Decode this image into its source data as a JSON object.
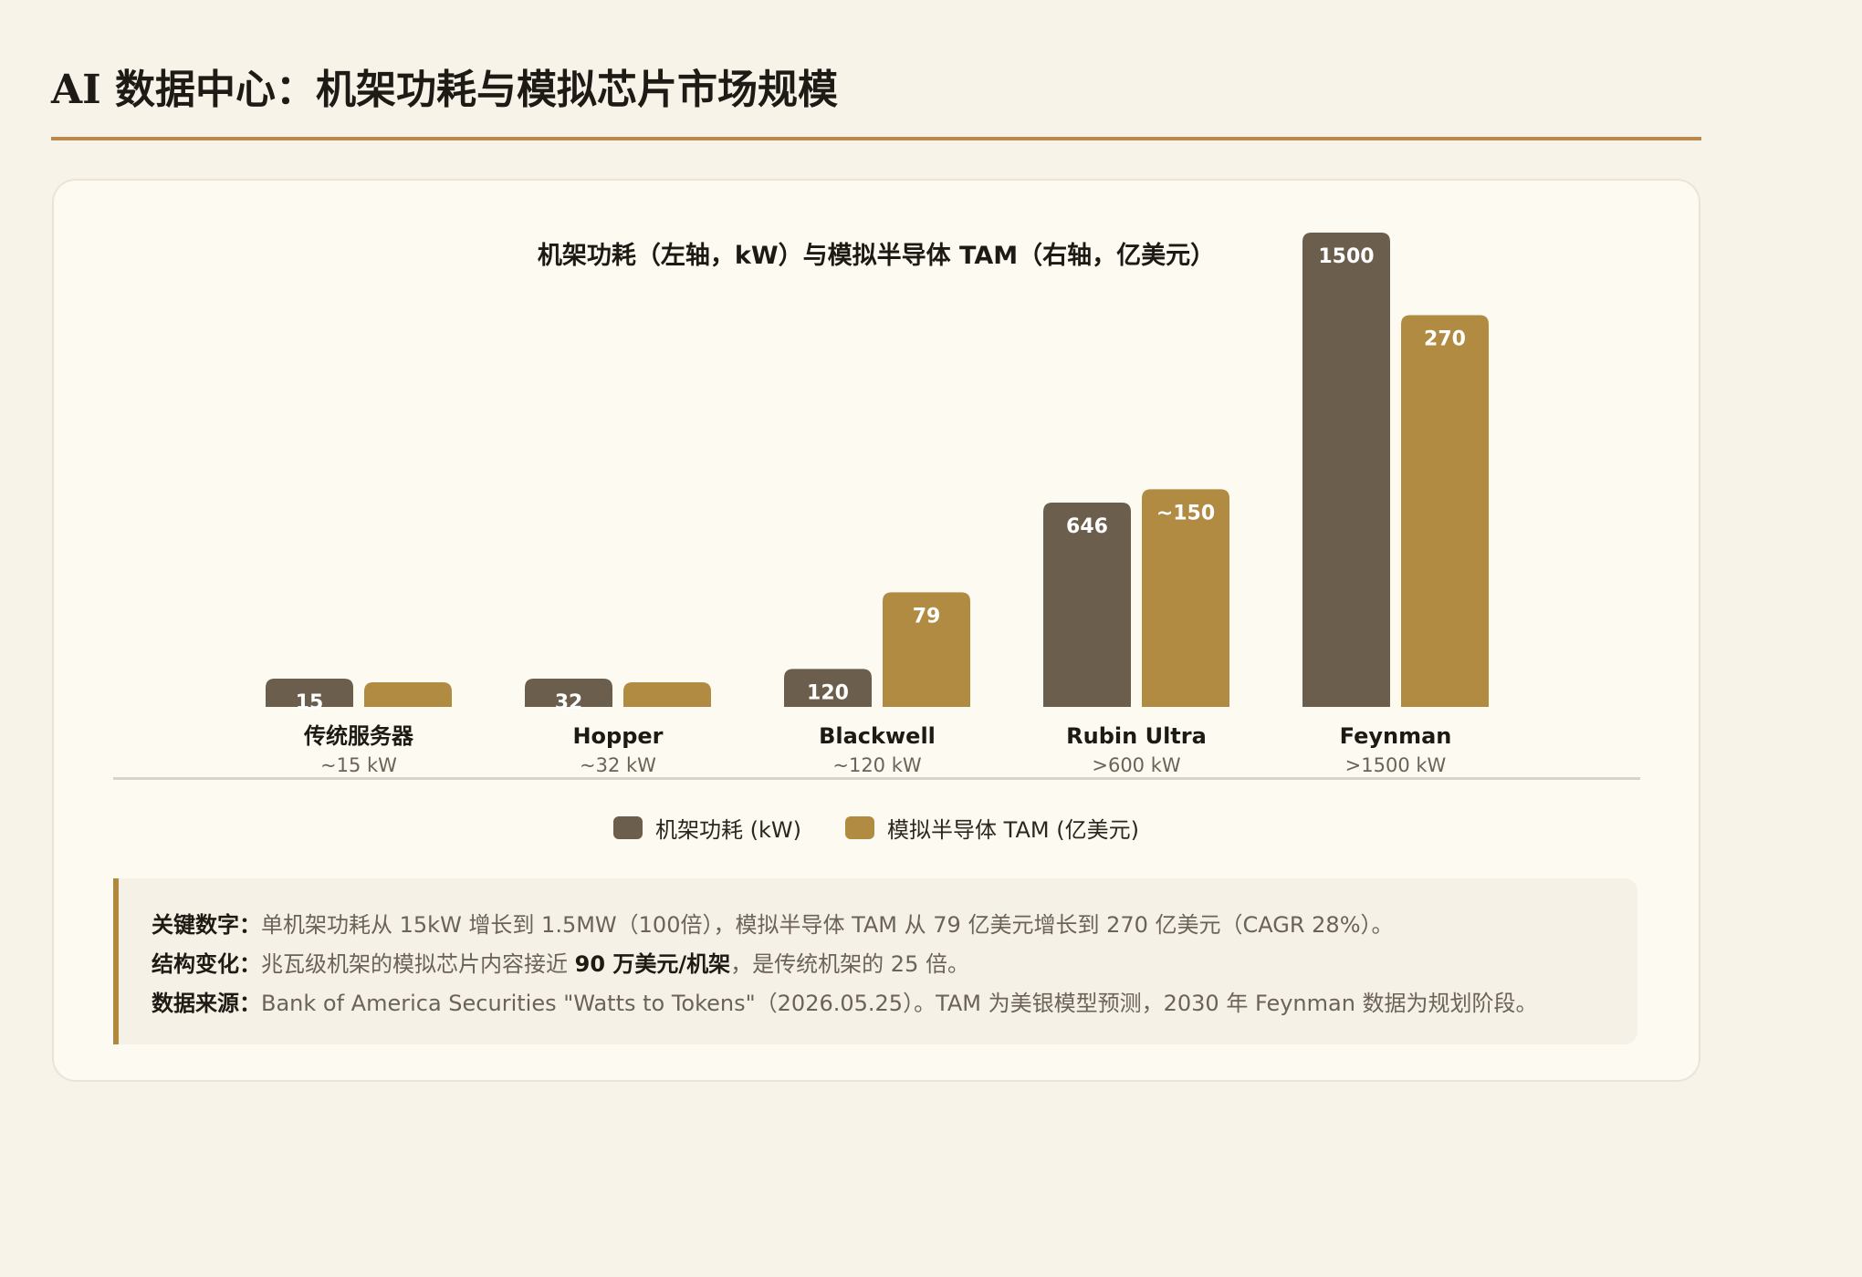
{
  "page": {
    "title": "AI 数据中心：机架功耗与模拟芯片市场规模"
  },
  "colors": {
    "power": "#6b5e4c",
    "tam": "#b18b42",
    "accent_rule": "#b8894a",
    "bar_label": "#ffffff"
  },
  "chart_data": {
    "type": "bar",
    "title": "机架功耗（左轴，kW）与模拟半导体 TAM（右轴，亿美元）",
    "categories": [
      "传统服务器",
      "Hopper",
      "Blackwell",
      "Rubin Ultra",
      "Feynman"
    ],
    "category_sublabels": [
      "~15 kW",
      "~32 kW",
      "~120 kW",
      ">600 kW",
      ">1500 kW"
    ],
    "series": [
      {
        "name": "机架功耗 (kW)",
        "axis": "left",
        "color": "#6b5e4c",
        "values": [
          15,
          32,
          120,
          646,
          1500
        ],
        "labels": [
          "15",
          "32",
          "120",
          "646",
          "1500"
        ]
      },
      {
        "name": "模拟半导体 TAM (亿美元)",
        "axis": "right",
        "color": "#b18b42",
        "values": [
          6,
          6,
          79,
          150,
          270
        ],
        "labels": [
          "",
          "",
          "79",
          "~150",
          "270"
        ]
      }
    ],
    "legend_position": "bottom",
    "grid": false
  },
  "notes": {
    "key_numbers": {
      "label": "关键数字：",
      "text": "单机架功耗从 15kW 增长到 1.5MW（100倍），模拟半导体 TAM 从 79 亿美元增长到 270 亿美元（CAGR 28%）。"
    },
    "structure": {
      "label": "结构变化：",
      "text_before": "兆瓦级机架的模拟芯片内容接近 ",
      "strong": "90 万美元/机架",
      "text_after": "，是传统机架的 25 倍。"
    },
    "source": {
      "label": "数据来源：",
      "text": "Bank of America Securities \"Watts to Tokens\"（2026.05.25）。TAM 为美银模型预测，2030 年 Feynman 数据为规划阶段。"
    }
  }
}
